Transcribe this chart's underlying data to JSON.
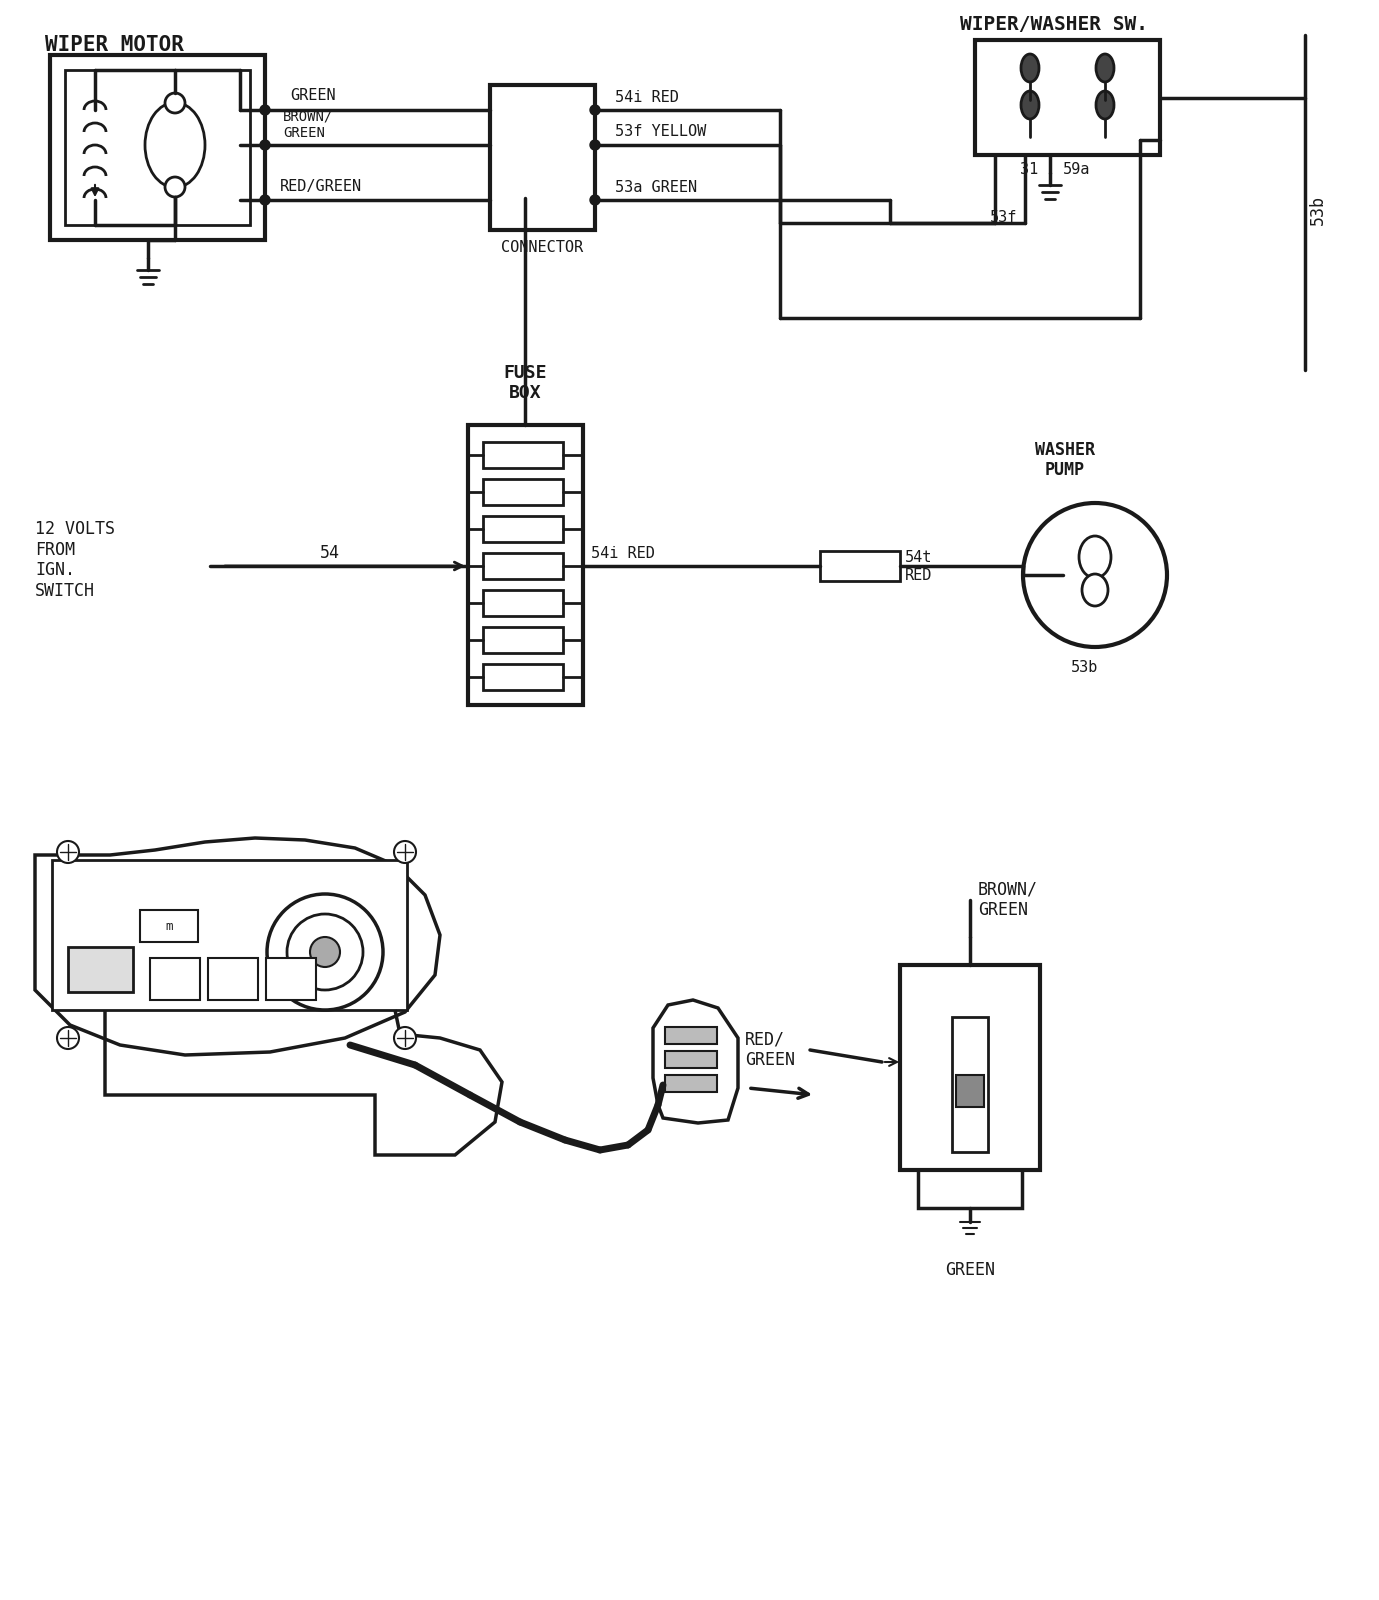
{
  "bg_color": "#ffffff",
  "line_color": "#1a1a1a",
  "lw": 2.5,
  "labels": {
    "wiper_motor": "WIPER MOTOR",
    "wiper_washer_sw": "WIPER/WASHER SW.",
    "fuse_box": "FUSE\nBOX",
    "washer_pump": "WASHER\nPUMP",
    "green_wire": "GREEN",
    "brown_green": "BROWN/\nGREEN",
    "red_green": "RED/GREEN",
    "connector": "CONNECTOR",
    "54i_red": "54i RED",
    "53f_yellow": "53f YELLOW",
    "53a_green": "53a GREEN",
    "12v": "12 VOLTS\nFROM\nIGN.\nSWITCH",
    "54": "54",
    "54i_red2": "54i RED",
    "54t": "54t",
    "red": "RED",
    "31": "31",
    "59a": "59a",
    "53f2": "53f",
    "53b": "53b",
    "53b_vertical": "53b",
    "brown_green2": "BROWN/\nGREEN",
    "red_green2": "RED/\nGREEN",
    "green2": "GREEN"
  }
}
